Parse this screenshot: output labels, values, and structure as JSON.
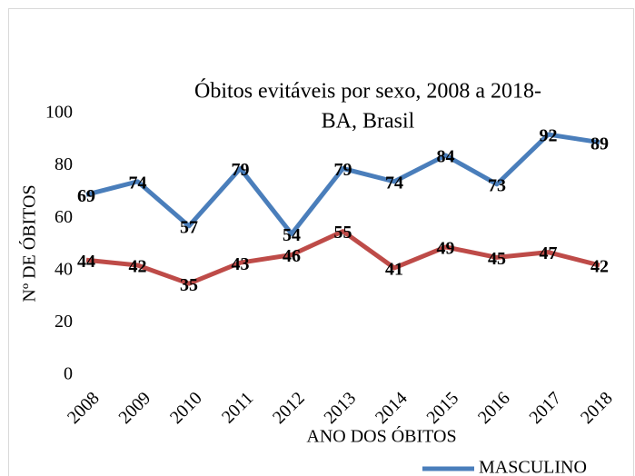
{
  "chart_data": {
    "type": "line",
    "title": [
      "Óbitos evitáveis  por sexo, 2008 a 2018-",
      "BA, Brasil"
    ],
    "x_label": "ANO DOS ÓBITOS",
    "y_label": "Nº DE ÓBITOS",
    "categories": [
      "2008",
      "2009",
      "2010",
      "2011",
      "2012",
      "2013",
      "2014",
      "2015",
      "2016",
      "2017",
      "2018"
    ],
    "series": [
      {
        "name": "MASCULINO",
        "color": "#4a7ebb",
        "values": [
          69,
          74,
          57,
          79,
          54,
          79,
          74,
          84,
          73,
          92,
          89
        ]
      },
      {
        "color": "#be4b48",
        "values": [
          44,
          42,
          35,
          43,
          46,
          55,
          41,
          49,
          45,
          47,
          42
        ]
      }
    ],
    "ylim": [
      0,
      100
    ],
    "yticks": [
      0,
      20,
      40,
      60,
      80,
      100
    ],
    "grid": false
  }
}
